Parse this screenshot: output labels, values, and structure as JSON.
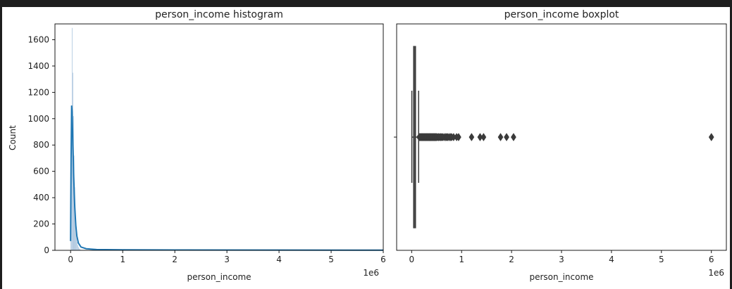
{
  "frame": {
    "border_color": "#1e1e1e",
    "background": "#ffffff"
  },
  "chart_data": [
    {
      "type": "bar",
      "title": "person_income histogram",
      "xlabel": "person_income",
      "ylabel": "Count",
      "x_offset_label": "1e6",
      "xlim": [
        -0.3,
        6.0
      ],
      "ylim": [
        0,
        1720
      ],
      "xticks": [
        0,
        1,
        2,
        3,
        4,
        5,
        6
      ],
      "yticks": [
        0,
        200,
        400,
        600,
        800,
        1000,
        1200,
        1400,
        1600
      ],
      "bar_color": "#4c84b8",
      "kde_color": "#1f77b4",
      "histogram": {
        "bin_edges": [
          0.0,
          0.012,
          0.024,
          0.036,
          0.048,
          0.06,
          0.072,
          0.084,
          0.096,
          0.108,
          0.12,
          0.132,
          0.144,
          0.156,
          0.168,
          0.18,
          0.192,
          0.204
        ],
        "counts": [
          70,
          850,
          1690,
          1350,
          1020,
          720,
          480,
          300,
          180,
          110,
          65,
          40,
          25,
          15,
          10,
          6,
          4
        ]
      },
      "kde": {
        "x": [
          0.0,
          0.01,
          0.02,
          0.03,
          0.045,
          0.06,
          0.08,
          0.1,
          0.12,
          0.15,
          0.2,
          0.3,
          0.5,
          1.0,
          2.0,
          4.0,
          6.0
        ],
        "y": [
          70,
          700,
          1100,
          1050,
          800,
          560,
          330,
          190,
          110,
          55,
          25,
          12,
          6,
          4,
          3,
          2,
          1
        ]
      }
    },
    {
      "type": "box",
      "title": "person_income boxplot",
      "xlabel": "person_income",
      "x_offset_label": "1e6",
      "xlim": [
        -0.3,
        6.3
      ],
      "xticks": [
        0,
        1,
        2,
        3,
        4,
        5,
        6
      ],
      "box_color": "#3a3a3a",
      "box": {
        "whisker_low": 0.004,
        "q1": 0.0385,
        "median": 0.055,
        "q3": 0.0792,
        "whisker_high": 0.14
      },
      "outliers": [
        0.15,
        0.16,
        0.17,
        0.18,
        0.19,
        0.2,
        0.21,
        0.22,
        0.23,
        0.24,
        0.25,
        0.26,
        0.27,
        0.28,
        0.29,
        0.3,
        0.31,
        0.32,
        0.33,
        0.34,
        0.35,
        0.36,
        0.37,
        0.38,
        0.39,
        0.4,
        0.41,
        0.42,
        0.43,
        0.44,
        0.45,
        0.46,
        0.47,
        0.48,
        0.49,
        0.5,
        0.52,
        0.54,
        0.56,
        0.58,
        0.6,
        0.62,
        0.65,
        0.68,
        0.7,
        0.72,
        0.75,
        0.78,
        0.8,
        0.84,
        0.9,
        0.94,
        1.2,
        1.37,
        1.44,
        1.78,
        1.9,
        2.04,
        6.0
      ]
    }
  ]
}
